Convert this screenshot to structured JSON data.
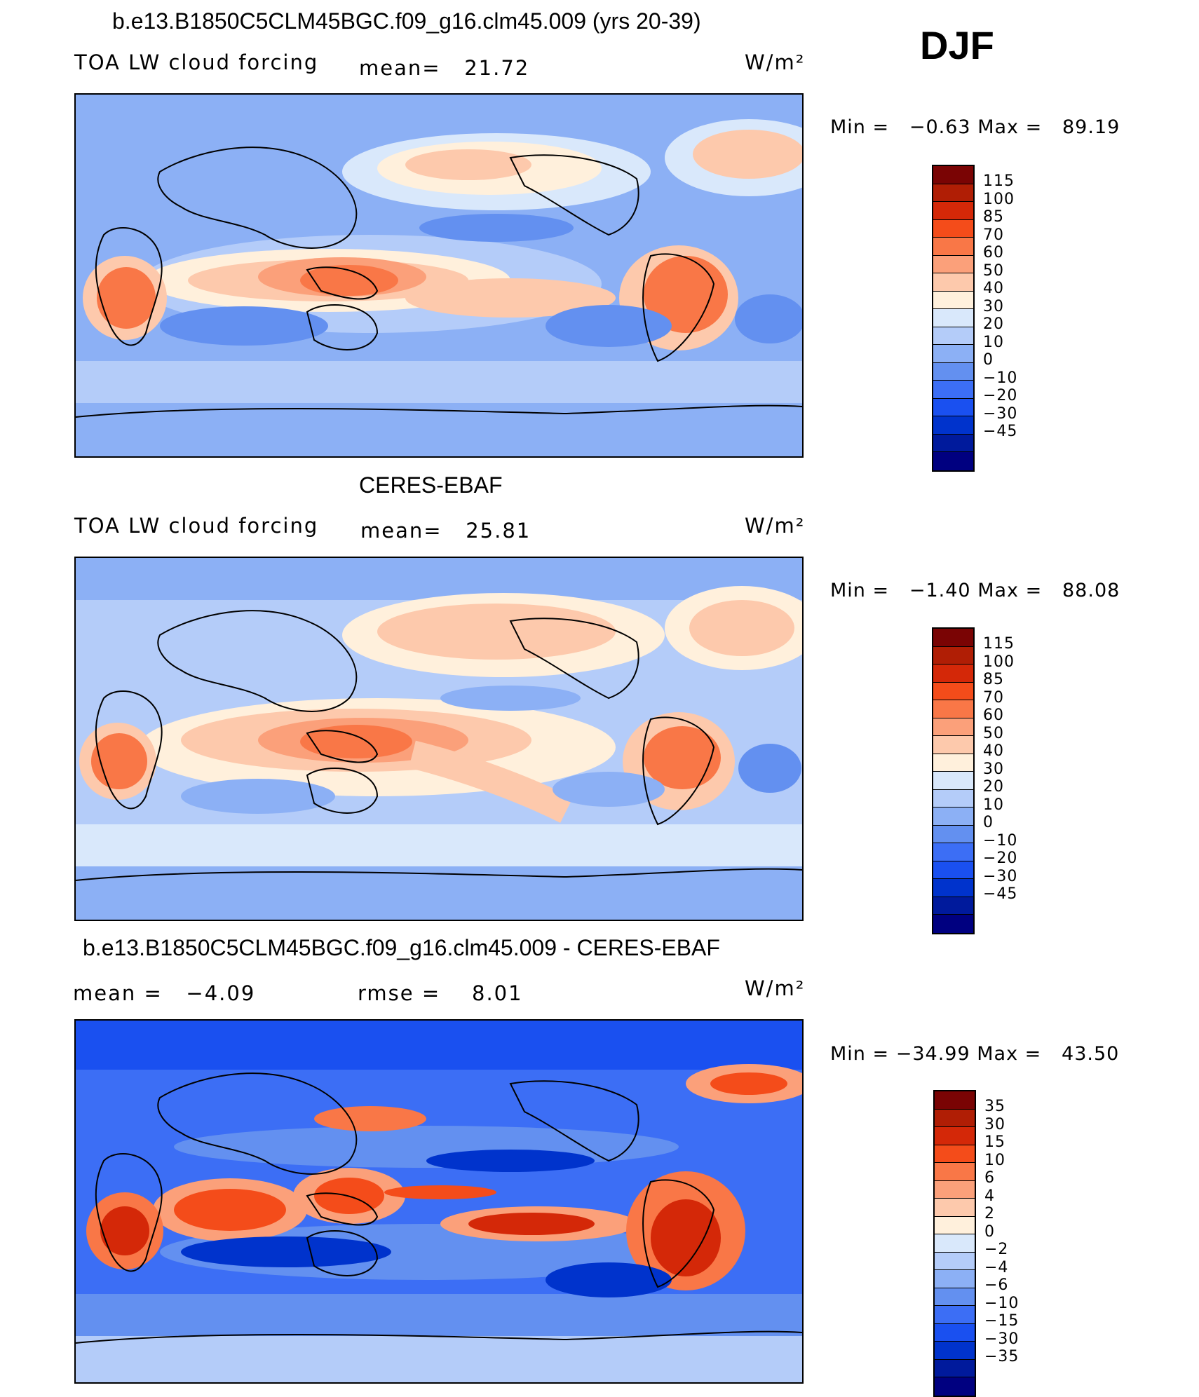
{
  "season": "DJF",
  "units": "W/m²",
  "colors": {
    "main_scale": [
      "#000080",
      "#001a9c",
      "#0033cc",
      "#1a50f0",
      "#3c6ef5",
      "#6390f0",
      "#8cb0f5",
      "#b4ccf9",
      "#d9e8fb",
      "#fff0dc",
      "#fdc9ac",
      "#fba07a",
      "#f97747",
      "#f44c1a",
      "#d42808",
      "#b01e05",
      "#7a0404"
    ],
    "diff_scale": [
      "#000080",
      "#001a9c",
      "#0033cc",
      "#1a50f0",
      "#3c6ef5",
      "#6390f0",
      "#8cb0f5",
      "#b4ccf9",
      "#d9e8fb",
      "#fff0dc",
      "#fdc9ac",
      "#fba07a",
      "#f97747",
      "#f44c1a",
      "#d42808",
      "#b01e05",
      "#7a0404"
    ]
  },
  "panels": [
    {
      "id": "model",
      "title": "b.e13.B1850C5CLM45BGC.f09_g16.clm45.009 (yrs 20-39)",
      "variable": "TOA LW cloud forcing",
      "mean_label": "mean=",
      "mean_value": "21.72",
      "units": "W/m²",
      "min_label": "Min =",
      "min_value": "−0.63",
      "max_label": "Max =",
      "max_value": "89.19",
      "ticks": [
        "115",
        "100",
        "85",
        "70",
        "60",
        "50",
        "40",
        "30",
        "20",
        "10",
        "0",
        "−10",
        "−20",
        "−30",
        "−45"
      ]
    },
    {
      "id": "obs",
      "title": "CERES-EBAF",
      "variable": "TOA LW cloud forcing",
      "mean_label": "mean=",
      "mean_value": "25.81",
      "units": "W/m²",
      "min_label": "Min =",
      "min_value": "−1.40",
      "max_label": "Max =",
      "max_value": "88.08",
      "ticks": [
        "115",
        "100",
        "85",
        "70",
        "60",
        "50",
        "40",
        "30",
        "20",
        "10",
        "0",
        "−10",
        "−20",
        "−30",
        "−45"
      ]
    },
    {
      "id": "diff",
      "title": "b.e13.B1850C5CLM45BGC.f09_g16.clm45.009 - CERES-EBAF",
      "mean_label": "mean =",
      "mean_value": "−4.09",
      "rmse_label": "rmse =",
      "rmse_value": "8.01",
      "units": "W/m²",
      "min_label": "Min =",
      "min_value": "−34.99",
      "max_label": "Max =",
      "max_value": "43.50",
      "ticks": [
        "35",
        "30",
        "15",
        "10",
        "6",
        "4",
        "2",
        "0",
        "−2",
        "−4",
        "−6",
        "−10",
        "−15",
        "−30",
        "−35"
      ]
    }
  ]
}
